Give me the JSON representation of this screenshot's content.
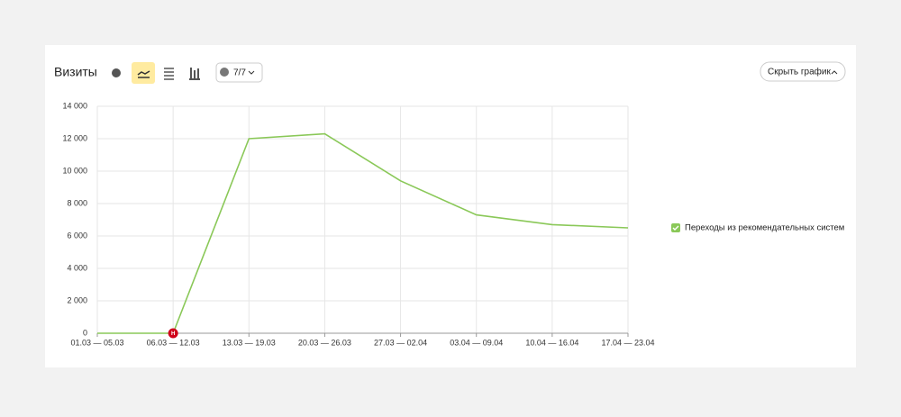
{
  "header": {
    "title": "Визиты",
    "counter": "7/7",
    "hide_button": "Скрыть график"
  },
  "chart_data": {
    "type": "line",
    "categories": [
      "01.03 — 05.03",
      "06.03 — 12.03",
      "13.03 — 19.03",
      "20.03 — 26.03",
      "27.03 — 02.04",
      "03.04 — 09.04",
      "10.04 — 16.04",
      "17.04 — 23.04"
    ],
    "series": [
      {
        "name": "Переходы из рекомендательных систем",
        "color": "#8ac858",
        "values": [
          0,
          0,
          12000,
          12300,
          9400,
          7300,
          6700,
          6500
        ]
      }
    ],
    "ylim": [
      0,
      14000
    ],
    "yticks": [
      0,
      {
        "value": 2000,
        "label": "2 000"
      },
      {
        "value": 4000,
        "label": "4 000"
      },
      {
        "value": 6000,
        "label": "6 000"
      },
      {
        "value": 8000,
        "label": "8 000"
      },
      {
        "value": 10000,
        "label": "10 000"
      },
      {
        "value": 12000,
        "label": "12 000"
      },
      {
        "value": 14000,
        "label": "14 000"
      }
    ],
    "grid": true,
    "legend": "right",
    "annotation": "Н"
  }
}
